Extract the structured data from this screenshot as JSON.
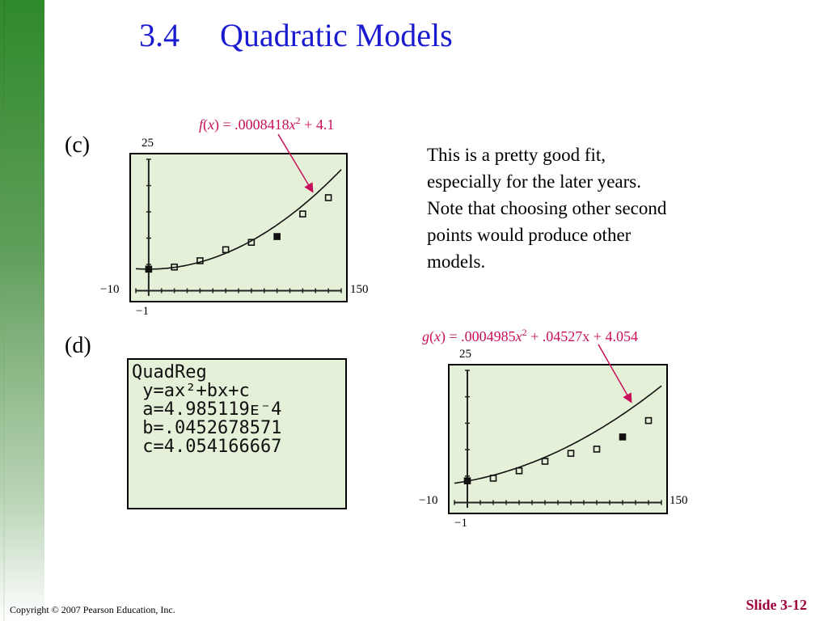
{
  "slide": {
    "title": "3.4  Quadratic Models",
    "footer_copyright": "Copyright © 2007 Pearson Education, Inc.",
    "slide_number": "Slide 3-12",
    "colors": {
      "title": "#1a1ad0",
      "formula": "#c8105a",
      "screen_bg": "#e4f1d8",
      "band": "#2f8a2a"
    }
  },
  "panel_c": {
    "label": "(c)",
    "formula": {
      "fn": "f",
      "var": "x",
      "coef": ".0008418",
      "exp": "2",
      "rest": "+ 4.1"
    },
    "ticks": {
      "ymax": "25",
      "ymin": "−1",
      "xmin": "−10",
      "xmax": "150"
    }
  },
  "panel_d": {
    "label": "(d)",
    "calc_lines": [
      "QuadReg",
      " y=ax²+bx+c",
      " a=4.985119ᴇ⁻4",
      " b=.0452678571",
      " c=4.054166667"
    ]
  },
  "panel_e": {
    "formula": {
      "fn": "g",
      "var": "x",
      "coef": ".0004985",
      "exp": "2",
      "rest": "+ .04527x + 4.054"
    },
    "ticks": {
      "ymax": "25",
      "ymin": "−1",
      "xmin": "−10",
      "xmax": "150"
    }
  },
  "note_text": "This is a pretty good fit, especially for the later years. Note that choosing other second points would produce other models.",
  "chart_data": [
    {
      "type": "scatter",
      "title": "",
      "xlabel": "",
      "ylabel": "",
      "xlim": [
        -10,
        150
      ],
      "ylim": [
        -1,
        25
      ],
      "xscl": 10,
      "yscl": 5,
      "points": [
        {
          "x": 0,
          "y": 4.1,
          "filled": true
        },
        {
          "x": 20,
          "y": 4.5,
          "filled": false
        },
        {
          "x": 40,
          "y": 5.7,
          "filled": false
        },
        {
          "x": 60,
          "y": 7.8,
          "filled": false
        },
        {
          "x": 80,
          "y": 9.2,
          "filled": false
        },
        {
          "x": 100,
          "y": 10.3,
          "filled": true
        },
        {
          "x": 120,
          "y": 14.6,
          "filled": false
        },
        {
          "x": 140,
          "y": 17.7,
          "filled": false
        }
      ],
      "curve": {
        "a": 0.0008418,
        "b": 0,
        "c": 4.1
      },
      "grid": false
    },
    {
      "type": "scatter",
      "title": "",
      "xlabel": "",
      "ylabel": "",
      "xlim": [
        -10,
        150
      ],
      "ylim": [
        -1,
        25
      ],
      "xscl": 10,
      "yscl": 5,
      "points": [
        {
          "x": 0,
          "y": 4.1,
          "filled": true
        },
        {
          "x": 20,
          "y": 4.6,
          "filled": false
        },
        {
          "x": 40,
          "y": 6.0,
          "filled": false
        },
        {
          "x": 60,
          "y": 7.8,
          "filled": false
        },
        {
          "x": 80,
          "y": 9.3,
          "filled": false
        },
        {
          "x": 100,
          "y": 10.1,
          "filled": false
        },
        {
          "x": 120,
          "y": 12.4,
          "filled": true
        },
        {
          "x": 140,
          "y": 15.5,
          "filled": false
        }
      ],
      "curve": {
        "a": 0.0004985,
        "b": 0.04527,
        "c": 4.054
      },
      "grid": false
    }
  ]
}
